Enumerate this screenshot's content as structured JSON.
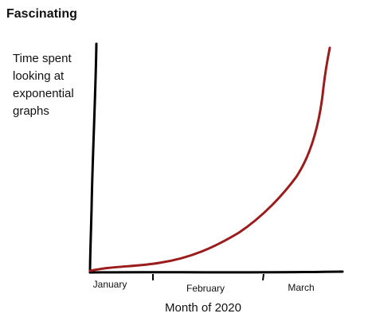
{
  "header": {
    "title": "Fascinating"
  },
  "chart": {
    "y_label_lines": [
      "Time spent",
      "looking at",
      "exponential",
      "graphs"
    ],
    "x_ticks": [
      "January",
      "February",
      "March"
    ],
    "x_label": "Month of 2020"
  }
}
